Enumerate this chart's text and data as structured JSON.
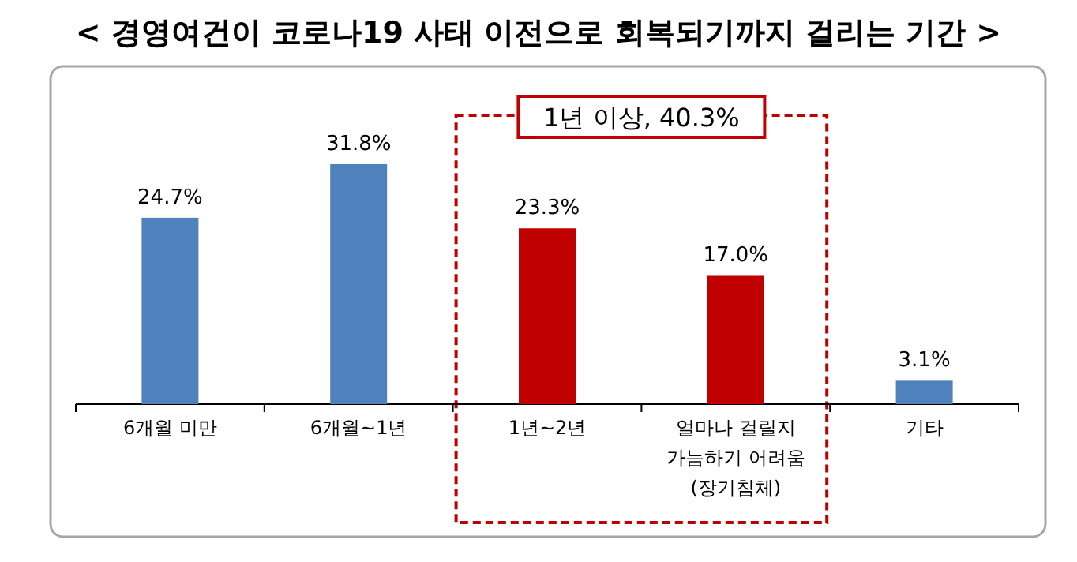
{
  "chart_data": {
    "type": "bar",
    "title": "< 경영여건이 코로나19 사태 이전으로 회복되기까지 걸리는 기간 >",
    "categories": [
      "6개월 미만",
      "6개월~1년",
      "1년~2년",
      "얼마나 걸릴지 가늠하기 어려움(장기침체)",
      "기타"
    ],
    "values": [
      24.7,
      31.8,
      23.3,
      17.0,
      3.1
    ],
    "value_labels": [
      "24.7%",
      "31.8%",
      "23.3%",
      "17.0%",
      "3.1%"
    ],
    "colors": [
      "#4f81bd",
      "#4f81bd",
      "#c00000",
      "#c00000",
      "#4f81bd"
    ],
    "annotations": [
      "1년 이상, 40.3%"
    ]
  }
}
